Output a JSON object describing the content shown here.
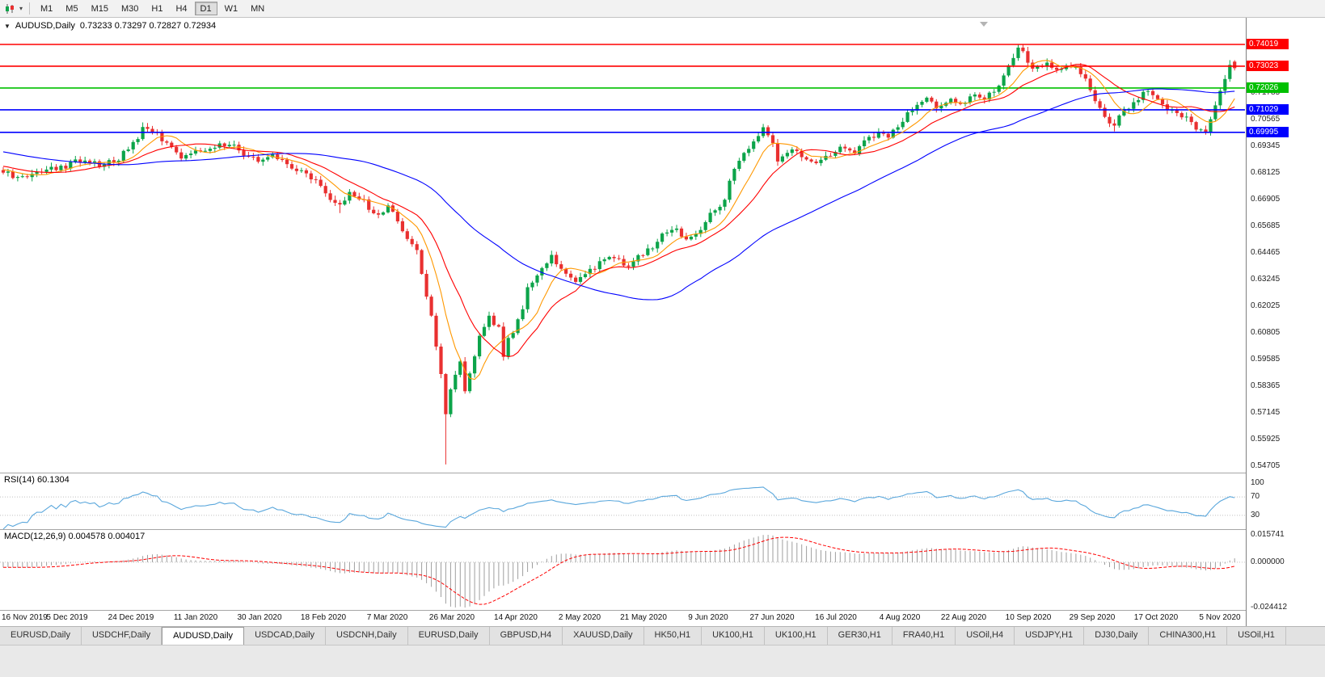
{
  "toolbar": {
    "timeframes": [
      "M1",
      "M5",
      "M15",
      "M30",
      "H1",
      "H4",
      "D1",
      "W1",
      "MN"
    ],
    "active_timeframe": "D1"
  },
  "chart": {
    "symbol_label": "AUDUSD,Daily",
    "ohlc_label": "0.73233 0.73297 0.72827 0.72934"
  },
  "rsi": {
    "label": "RSI(14) 60.1304"
  },
  "macd": {
    "label": "MACD(12,26,9) 0.004578 0.004017"
  },
  "tabbar": {
    "tabs": [
      "EURUSD,Daily",
      "USDCHF,Daily",
      "AUDUSD,Daily",
      "USDCAD,Daily",
      "USDCNH,Daily",
      "EURUSD,Daily",
      "GBPUSD,H4",
      "XAUUSD,Daily",
      "HK50,H1",
      "UK100,H1",
      "UK100,H1",
      "GER30,H1",
      "FRA40,H1",
      "USOil,H4",
      "USDJPY,H1",
      "DJ30,Daily",
      "CHINA300,H1",
      "USOil,H1"
    ],
    "active_index": 2
  },
  "colors": {
    "bull": "#0ca44a",
    "bear": "#e93030",
    "rsi_line": "#5aa7dc",
    "macd_hist": "#9e9e9e",
    "macd_signal": "#ff0000"
  },
  "chart_data": {
    "type": "candlestick",
    "title": "AUDUSD,Daily",
    "days": 257,
    "prehistory": {
      "days": 50,
      "start": 0.701,
      "end": 0.6815
    },
    "close_anchors": [
      [
        0,
        0.6815
      ],
      [
        4,
        0.679
      ],
      [
        8,
        0.683
      ],
      [
        13,
        0.6845
      ],
      [
        17,
        0.688
      ],
      [
        20,
        0.6855
      ],
      [
        24,
        0.688
      ],
      [
        28,
        0.698
      ],
      [
        29,
        0.703
      ],
      [
        32,
        0.699
      ],
      [
        34,
        0.695
      ],
      [
        37,
        0.689
      ],
      [
        40,
        0.6905
      ],
      [
        44,
        0.693
      ],
      [
        47,
        0.695
      ],
      [
        50,
        0.69
      ],
      [
        53,
        0.687
      ],
      [
        56,
        0.689
      ],
      [
        60,
        0.684
      ],
      [
        63,
        0.681
      ],
      [
        66,
        0.676
      ],
      [
        68,
        0.67
      ],
      [
        70,
        0.666
      ],
      [
        72,
        0.672
      ],
      [
        75,
        0.668
      ],
      [
        77,
        0.6625
      ],
      [
        80,
        0.6655
      ],
      [
        82,
        0.66
      ],
      [
        84,
        0.652
      ],
      [
        86,
        0.645
      ],
      [
        87,
        0.635
      ],
      [
        89,
        0.615
      ],
      [
        91,
        0.59
      ],
      [
        92,
        0.572
      ],
      [
        93,
        0.583
      ],
      [
        95,
        0.595
      ],
      [
        96,
        0.582
      ],
      [
        98,
        0.598
      ],
      [
        99,
        0.608
      ],
      [
        101,
        0.615
      ],
      [
        103,
        0.61
      ],
      [
        104,
        0.598
      ],
      [
        105,
        0.605
      ],
      [
        108,
        0.618
      ],
      [
        109,
        0.628
      ],
      [
        111,
        0.634
      ],
      [
        114,
        0.643
      ],
      [
        116,
        0.638
      ],
      [
        119,
        0.632
      ],
      [
        121,
        0.636
      ],
      [
        124,
        0.64
      ],
      [
        126,
        0.643
      ],
      [
        130,
        0.639
      ],
      [
        132,
        0.643
      ],
      [
        135,
        0.647
      ],
      [
        137,
        0.653
      ],
      [
        140,
        0.656
      ],
      [
        142,
        0.651
      ],
      [
        145,
        0.655
      ],
      [
        147,
        0.662
      ],
      [
        150,
        0.668
      ],
      [
        151,
        0.678
      ],
      [
        153,
        0.688
      ],
      [
        156,
        0.696
      ],
      [
        158,
        0.701
      ],
      [
        160,
        0.695
      ],
      [
        161,
        0.686
      ],
      [
        164,
        0.692
      ],
      [
        167,
        0.688
      ],
      [
        169,
        0.686
      ],
      [
        172,
        0.69
      ],
      [
        174,
        0.693
      ],
      [
        177,
        0.69
      ],
      [
        179,
        0.696
      ],
      [
        182,
        0.699
      ],
      [
        184,
        0.698
      ],
      [
        187,
        0.706
      ],
      [
        189,
        0.711
      ],
      [
        192,
        0.715
      ],
      [
        194,
        0.712
      ],
      [
        197,
        0.716
      ],
      [
        199,
        0.713
      ],
      [
        202,
        0.718
      ],
      [
        204,
        0.715
      ],
      [
        207,
        0.721
      ],
      [
        209,
        0.73
      ],
      [
        211,
        0.739
      ],
      [
        213,
        0.733
      ],
      [
        214,
        0.728
      ],
      [
        217,
        0.731
      ],
      [
        219,
        0.729
      ],
      [
        222,
        0.731
      ],
      [
        225,
        0.725
      ],
      [
        227,
        0.715
      ],
      [
        229,
        0.706
      ],
      [
        231,
        0.703
      ],
      [
        233,
        0.71
      ],
      [
        236,
        0.716
      ],
      [
        238,
        0.719
      ],
      [
        241,
        0.713
      ],
      [
        243,
        0.709
      ],
      [
        246,
        0.706
      ],
      [
        248,
        0.701
      ],
      [
        250,
        0.6995
      ],
      [
        251,
        0.706
      ],
      [
        252,
        0.713
      ],
      [
        253,
        0.719
      ],
      [
        254,
        0.7245
      ],
      [
        255,
        0.731
      ],
      [
        256,
        0.72934
      ]
    ],
    "wick_overrides": {
      "29": {
        "high": 0.7045
      },
      "70": {
        "low": 0.663
      },
      "92": {
        "low": 0.548
      },
      "104": {
        "low": 0.5955
      },
      "158": {
        "high": 0.7038
      },
      "211": {
        "high": 0.7401
      },
      "231": {
        "low": 0.7004
      },
      "250": {
        "low": 0.6989
      },
      "255": {
        "high": 0.733
      }
    },
    "last_candle": {
      "open": 0.73233,
      "high": 0.73297,
      "low": 0.72827,
      "close": 0.72934
    },
    "hlines": [
      {
        "price": 0.74019,
        "label": "0.74019",
        "color": "#ff0000"
      },
      {
        "price": 0.73023,
        "label": "0.73023",
        "color": "#ff0000"
      },
      {
        "price": 0.72026,
        "label": "0.72026",
        "color": "#00c000"
      },
      {
        "price": 0.71029,
        "label": "0.71029",
        "color": "#0000ff"
      },
      {
        "price": 0.69995,
        "label": "0.69995",
        "color": "#0000ff"
      }
    ],
    "y_ticks": [
      "0.71785",
      "0.70565",
      "0.69345",
      "0.68125",
      "0.66905",
      "0.65685",
      "0.64465",
      "0.63245",
      "0.62025",
      "0.60805",
      "0.59585",
      "0.58365",
      "0.57145",
      "0.55925",
      "0.54705"
    ],
    "x_labels": [
      "16 Nov 2019",
      "5 Dec 2019",
      "24 Dec 2019",
      "11 Jan 2020",
      "30 Jan 2020",
      "18 Feb 2020",
      "7 Mar 2020",
      "26 Mar 2020",
      "14 Apr 2020",
      "2 May 2020",
      "21 May 2020",
      "9 Jun 2020",
      "27 Jun 2020",
      "16 Jul 2020",
      "4 Aug 2020",
      "22 Aug 2020",
      "10 Sep 2020",
      "29 Sep 2020",
      "17 Oct 2020",
      "5 Nov 2020"
    ],
    "moving_averages": [
      {
        "name": "ma-fast-orange-line",
        "period": 8,
        "color": "#ff9800"
      },
      {
        "name": "ma-mid-red-line",
        "period": 16,
        "color": "#ff0000"
      },
      {
        "name": "ma-slow-blue-line",
        "period": 50,
        "color": "#0000ff"
      }
    ],
    "rsi": {
      "period": 14,
      "levels": [
        100,
        70,
        30
      ],
      "current": 60.1304
    },
    "macd": {
      "fast": 12,
      "slow": 26,
      "signal": 9,
      "axis_labels": [
        "0.015741",
        "0.000000",
        "-0.024412"
      ],
      "current_main": 0.004578,
      "current_signal": 0.004017
    }
  }
}
